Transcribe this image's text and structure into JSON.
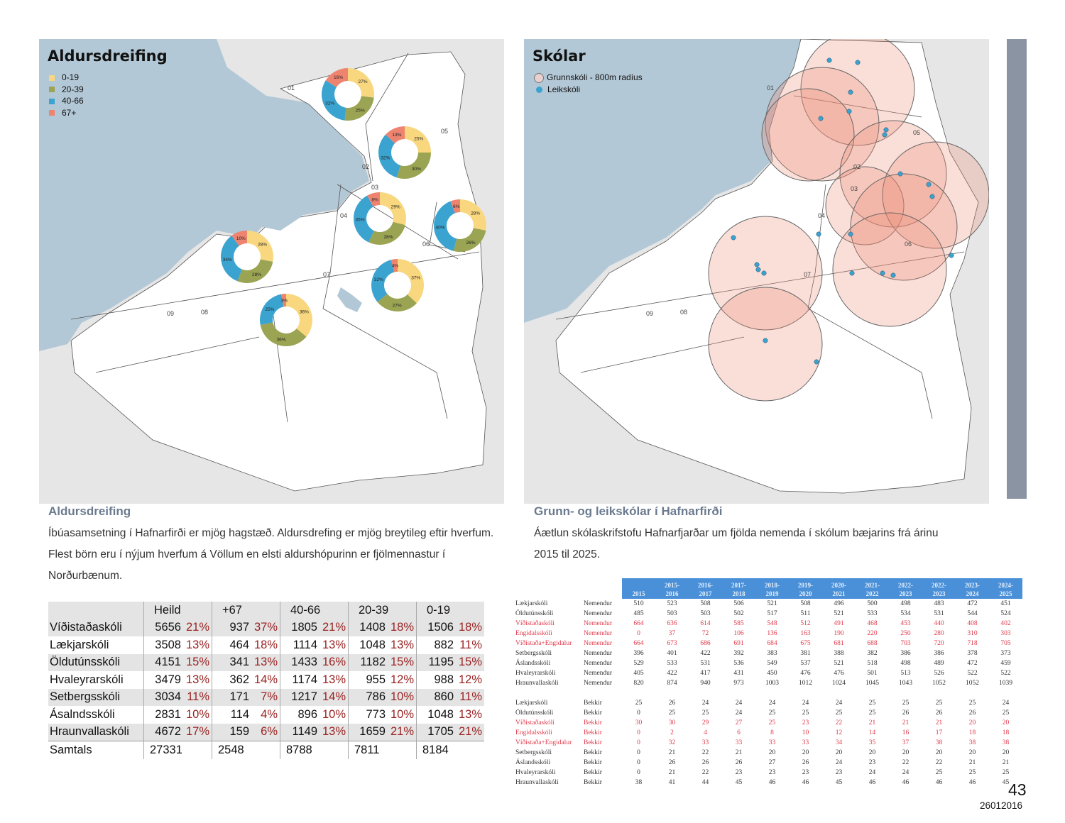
{
  "colors": {
    "age_0_19": "#f9d77e",
    "age_20_39": "#9aa452",
    "age_40_66": "#3ba3cf",
    "age_67": "#ee8370",
    "sea": "#b3c8d6",
    "caption": "#6b7a8f",
    "header_blue": "#4a90d9",
    "pct_red": "#9b2222",
    "highlight_red": "#e0394a"
  },
  "left_map": {
    "title": "Aldursdreifing",
    "legend": [
      "0-19",
      "20-39",
      "40-66",
      "67+"
    ],
    "districts": [
      "01",
      "02",
      "03",
      "04",
      "05",
      "06",
      "07",
      "08",
      "09"
    ],
    "donuts": [
      {
        "values": [
          27,
          25,
          32,
          16
        ],
        "labels": [
          "27%",
          "25%",
          "32%",
          "16%"
        ]
      },
      {
        "values": [
          25,
          30,
          32,
          13
        ],
        "labels": [
          "25%",
          "30%",
          "32%",
          "13%"
        ]
      },
      {
        "values": [
          29,
          28,
          35,
          8
        ],
        "labels": [
          "29%",
          "28%",
          "35%",
          "8%"
        ]
      },
      {
        "values": [
          28,
          26,
          40,
          6
        ],
        "labels": [
          "28%",
          "26%",
          "40%",
          "6%"
        ]
      },
      {
        "values": [
          28,
          28,
          34,
          10
        ],
        "labels": [
          "28%",
          "28%",
          "34%",
          "10%"
        ]
      },
      {
        "values": [
          37,
          27,
          32,
          4
        ],
        "labels": [
          "37%",
          "27%",
          "32%",
          "4%"
        ]
      },
      {
        "values": [
          36,
          36,
          25,
          3
        ],
        "labels": [
          "36%",
          "36%",
          "25%",
          "3%"
        ]
      }
    ]
  },
  "right_map": {
    "title": "Skólar",
    "legend": [
      "Grunnskóli - 800m radíus",
      "Leikskóli"
    ],
    "districts": [
      "01",
      "02",
      "03",
      "04",
      "05",
      "06",
      "07",
      "08",
      "09"
    ]
  },
  "left_section": {
    "caption": "Aldursdreifing",
    "paragraph": "Íbúasamsetning í Hafnarfirði er mjög hagstæð. Aldursdrefing er mjög breytileg eftir hverfum. Flest börn eru í nýjum hverfum á Völlum en elsti aldurshópurinn er fjölmennastur í Norðurbænum.",
    "table": {
      "headers": [
        "Heild",
        "+67",
        "40-66",
        "20-39",
        "0-19"
      ],
      "rows": [
        {
          "name": "Víðistaðaskóli",
          "cells": [
            [
              "5656",
              "21%"
            ],
            [
              "937",
              "37%"
            ],
            [
              "1805",
              "21%"
            ],
            [
              "1408",
              "18%"
            ],
            [
              "1506",
              "18%"
            ]
          ]
        },
        {
          "name": "Lækjarskóli",
          "cells": [
            [
              "3508",
              "13%"
            ],
            [
              "464",
              "18%"
            ],
            [
              "1114",
              "13%"
            ],
            [
              "1048",
              "13%"
            ],
            [
              "882",
              "11%"
            ]
          ]
        },
        {
          "name": "Öldutúnsskóli",
          "cells": [
            [
              "4151",
              "15%"
            ],
            [
              "341",
              "13%"
            ],
            [
              "1433",
              "16%"
            ],
            [
              "1182",
              "15%"
            ],
            [
              "1195",
              "15%"
            ]
          ]
        },
        {
          "name": "Hvaleyrarskóli",
          "cells": [
            [
              "3479",
              "13%"
            ],
            [
              "362",
              "14%"
            ],
            [
              "1174",
              "13%"
            ],
            [
              "955",
              "12%"
            ],
            [
              "988",
              "12%"
            ]
          ]
        },
        {
          "name": "Setbergsskóli",
          "cells": [
            [
              "3034",
              "11%"
            ],
            [
              "171",
              "7%"
            ],
            [
              "1217",
              "14%"
            ],
            [
              "786",
              "10%"
            ],
            [
              "860",
              "11%"
            ]
          ]
        },
        {
          "name": "Ásalndsskóli",
          "cells": [
            [
              "2831",
              "10%"
            ],
            [
              "114",
              "4%"
            ],
            [
              "896",
              "10%"
            ],
            [
              "773",
              "10%"
            ],
            [
              "1048",
              "13%"
            ]
          ]
        },
        {
          "name": "Hraunvallaskóli",
          "cells": [
            [
              "4672",
              "17%"
            ],
            [
              "159",
              "6%"
            ],
            [
              "1149",
              "13%"
            ],
            [
              "1659",
              "21%"
            ],
            [
              "1705",
              "21%"
            ]
          ]
        }
      ],
      "total": {
        "name": "Samtals",
        "values": [
          "27331",
          "2548",
          "8788",
          "7811",
          "8184"
        ]
      }
    }
  },
  "right_section": {
    "caption": "Grunn- og leikskólar í Hafnarfirði",
    "paragraph": "Áætlun skólaskrifstofu Hafnarfjarðar um fjölda nemenda í skólum bæjarins frá árinu 2015 til 2025.",
    "table": {
      "headers": [
        "2015",
        "2015-\n2016",
        "2016-\n2017",
        "2017-\n2018",
        "2018-\n2019",
        "2019-\n2020",
        "2020-\n2021",
        "2021-\n2022",
        "2022-\n2023",
        "2022-\n2023",
        "2023-\n2024",
        "2024-\n2025"
      ],
      "students": [
        {
          "name": "Lækjarskóli",
          "type": "Nemendur",
          "red": false,
          "values": [
            "510",
            "523",
            "508",
            "506",
            "521",
            "508",
            "496",
            "500",
            "498",
            "483",
            "472",
            "451"
          ]
        },
        {
          "name": "Öldutúnsskóli",
          "type": "Nemendur",
          "red": false,
          "values": [
            "485",
            "503",
            "503",
            "502",
            "517",
            "511",
            "521",
            "533",
            "534",
            "531",
            "544",
            "524"
          ]
        },
        {
          "name": "Víðistaðaskóli",
          "type": "Nemendur",
          "red": true,
          "values": [
            "664",
            "636",
            "614",
            "585",
            "548",
            "512",
            "491",
            "468",
            "453",
            "440",
            "408",
            "402"
          ]
        },
        {
          "name": "Engidalsskóli",
          "type": "Nemendur",
          "red": true,
          "values": [
            "0",
            "37",
            "72",
            "106",
            "136",
            "163",
            "190",
            "220",
            "250",
            "280",
            "310",
            "303"
          ]
        },
        {
          "name": "Víðistaða+Engidalur",
          "type": "Nemendur",
          "red": true,
          "values": [
            "664",
            "673",
            "686",
            "691",
            "684",
            "675",
            "681",
            "688",
            "703",
            "720",
            "718",
            "705"
          ]
        },
        {
          "name": "Setbergsskóli",
          "type": "Nemendur",
          "red": false,
          "values": [
            "396",
            "401",
            "422",
            "392",
            "383",
            "381",
            "388",
            "382",
            "386",
            "386",
            "378",
            "373"
          ]
        },
        {
          "name": "Áslandsskóli",
          "type": "Nemendur",
          "red": false,
          "values": [
            "529",
            "533",
            "531",
            "536",
            "549",
            "537",
            "521",
            "518",
            "498",
            "489",
            "472",
            "459"
          ]
        },
        {
          "name": "Hvaleyrarskóli",
          "type": "Nemendur",
          "red": false,
          "values": [
            "405",
            "422",
            "417",
            "431",
            "450",
            "476",
            "476",
            "501",
            "513",
            "526",
            "522",
            "522"
          ]
        },
        {
          "name": "Hraunvallaskóli",
          "type": "Nemendur",
          "red": false,
          "values": [
            "820",
            "874",
            "940",
            "973",
            "1003",
            "1012",
            "1024",
            "1045",
            "1043",
            "1052",
            "1052",
            "1039"
          ]
        }
      ],
      "classes": [
        {
          "name": "Lækjarskóli",
          "type": "Bekkir",
          "red": false,
          "values": [
            "25",
            "26",
            "24",
            "24",
            "24",
            "24",
            "24",
            "25",
            "25",
            "25",
            "25",
            "24"
          ]
        },
        {
          "name": "Öldutúnsskóli",
          "type": "Bekkir",
          "red": false,
          "values": [
            "0",
            "25",
            "25",
            "24",
            "25",
            "25",
            "25",
            "25",
            "26",
            "26",
            "26",
            "25"
          ]
        },
        {
          "name": "Víðistaðaskóli",
          "type": "Bekkir",
          "red": true,
          "values": [
            "30",
            "30",
            "29",
            "27",
            "25",
            "23",
            "22",
            "21",
            "21",
            "21",
            "20",
            "20"
          ]
        },
        {
          "name": "Engidalsskóli",
          "type": "Bekkir",
          "red": true,
          "values": [
            "0",
            "2",
            "4",
            "6",
            "8",
            "10",
            "12",
            "14",
            "16",
            "17",
            "18",
            "18"
          ]
        },
        {
          "name": "Víðistaða+Engidalur",
          "type": "Bekkir",
          "red": true,
          "values": [
            "0",
            "32",
            "33",
            "33",
            "33",
            "33",
            "34",
            "35",
            "37",
            "38",
            "38",
            "38"
          ]
        },
        {
          "name": "Setbergsskóli",
          "type": "Bekkir",
          "red": false,
          "values": [
            "0",
            "21",
            "22",
            "21",
            "20",
            "20",
            "20",
            "20",
            "20",
            "20",
            "20",
            "20"
          ]
        },
        {
          "name": "Áslandsskóli",
          "type": "Bekkir",
          "red": false,
          "values": [
            "0",
            "26",
            "26",
            "26",
            "27",
            "26",
            "24",
            "23",
            "22",
            "22",
            "21",
            "21"
          ]
        },
        {
          "name": "Hvaleyrarskóli",
          "type": "Bekkir",
          "red": false,
          "values": [
            "0",
            "21",
            "22",
            "23",
            "23",
            "23",
            "23",
            "24",
            "24",
            "25",
            "25",
            "25"
          ]
        },
        {
          "name": "Hraunvallaskóli",
          "type": "Bekkir",
          "red": false,
          "values": [
            "38",
            "41",
            "44",
            "45",
            "46",
            "46",
            "45",
            "46",
            "46",
            "46",
            "46",
            "45"
          ]
        }
      ]
    }
  },
  "footer": {
    "page_number": "43",
    "date_code": "26012016"
  }
}
